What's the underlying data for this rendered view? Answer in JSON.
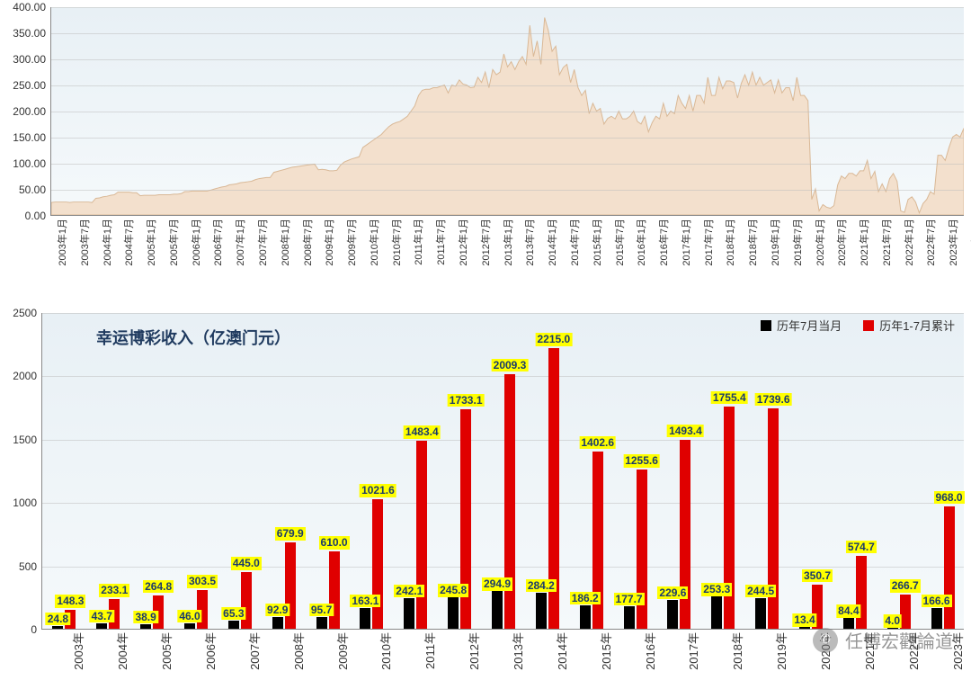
{
  "watermark": {
    "text": "任博宏觀論道",
    "icon": "✆"
  },
  "chart1": {
    "type": "area",
    "title": "幸运博彩收入（亿澳门元）",
    "title_fontsize": 18,
    "title_color": "#1f3a5f",
    "background_gradient": [
      "#e8f0f5",
      "#f5f9fb"
    ],
    "area_fill": "#f3e0cd",
    "area_stroke": "#d9b896",
    "ylim": [
      0,
      400
    ],
    "ytick_step": 50,
    "ytick_format": "fixed2",
    "x_start": {
      "year": 2003,
      "month": 1
    },
    "x_end": {
      "year": 2023,
      "month": 7
    },
    "x_tick_step_months": 6,
    "values": [
      24,
      25,
      25,
      25,
      25,
      24,
      25,
      25,
      25,
      25,
      25,
      24,
      32,
      33,
      35,
      36,
      38,
      39,
      44,
      44,
      44,
      44,
      43,
      43,
      37,
      38,
      38,
      38,
      38,
      39,
      39,
      39,
      39,
      40,
      40,
      41,
      45,
      45,
      46,
      46,
      46,
      46,
      46,
      48,
      50,
      52,
      54,
      55,
      58,
      59,
      60,
      62,
      63,
      64,
      65,
      68,
      70,
      71,
      72,
      72,
      82,
      84,
      86,
      88,
      90,
      92,
      93,
      94,
      95,
      96,
      97,
      98,
      87,
      88,
      87,
      85,
      85,
      86,
      96,
      102,
      105,
      108,
      110,
      112,
      130,
      135,
      140,
      145,
      150,
      155,
      163,
      170,
      175,
      178,
      180,
      185,
      190,
      200,
      210,
      230,
      240,
      242,
      242,
      245,
      245,
      248,
      250,
      235,
      250,
      248,
      260,
      252,
      250,
      245,
      246,
      265,
      255,
      275,
      245,
      280,
      270,
      275,
      310,
      285,
      295,
      280,
      295,
      305,
      290,
      365,
      305,
      335,
      290,
      380,
      355,
      315,
      325,
      270,
      284,
      290,
      255,
      280,
      245,
      230,
      240,
      195,
      215,
      200,
      205,
      175,
      186,
      190,
      185,
      200,
      185,
      185,
      190,
      200,
      180,
      175,
      190,
      160,
      178,
      190,
      185,
      215,
      190,
      200,
      195,
      230,
      215,
      205,
      230,
      200,
      230,
      230,
      215,
      265,
      230,
      230,
      265,
      243,
      258,
      258,
      255,
      225,
      253,
      270,
      250,
      275,
      250,
      265,
      250,
      255,
      260,
      235,
      260,
      235,
      245,
      245,
      220,
      265,
      230,
      230,
      220,
      30,
      50,
      8,
      20,
      15,
      13,
      18,
      58,
      75,
      70,
      80,
      80,
      75,
      85,
      85,
      105,
      70,
      84,
      45,
      60,
      45,
      70,
      80,
      65,
      8,
      5,
      30,
      35,
      25,
      4,
      22,
      30,
      45,
      40,
      115,
      115,
      105,
      130,
      150,
      155,
      150,
      167
    ]
  },
  "chart2": {
    "type": "grouped-bar",
    "title": "幸运博彩收入（亿澳门元）",
    "title_fontsize": 18,
    "title_color": "#1f3a5f",
    "background_gradient": [
      "#e8f0f5",
      "#f5f9fb"
    ],
    "ylim": [
      0,
      2500
    ],
    "ytick_step": 500,
    "colors": {
      "series1": "#000000",
      "series2": "#e00000"
    },
    "legend": [
      {
        "label": "历年7月当月",
        "color": "#000000"
      },
      {
        "label": "历年1-7月累计",
        "color": "#e00000"
      }
    ],
    "label_bg": "#ffff00",
    "label_color": "#1a3a6b",
    "label_fontsize": 12,
    "categories": [
      "2003年",
      "2004年",
      "2005年",
      "2006年",
      "2007年",
      "2008年",
      "2009年",
      "2010年",
      "2011年",
      "2012年",
      "2013年",
      "2014年",
      "2015年",
      "2016年",
      "2017年",
      "2018年",
      "2019年",
      "2020年",
      "2021年",
      "2022年",
      "2023年"
    ],
    "series1": [
      24.8,
      43.7,
      38.9,
      46.0,
      65.3,
      92.9,
      95.7,
      163.1,
      242.1,
      245.8,
      294.9,
      284.2,
      186.2,
      177.7,
      229.6,
      253.3,
      244.5,
      13.4,
      84.4,
      4.0,
      166.6
    ],
    "series2": [
      148.3,
      233.1,
      264.8,
      303.5,
      445.0,
      679.9,
      610.0,
      1021.6,
      1483.4,
      1733.1,
      2009.3,
      2215.0,
      1402.6,
      1255.6,
      1493.4,
      1755.4,
      1739.6,
      350.7,
      574.7,
      266.7,
      968.0
    ]
  }
}
